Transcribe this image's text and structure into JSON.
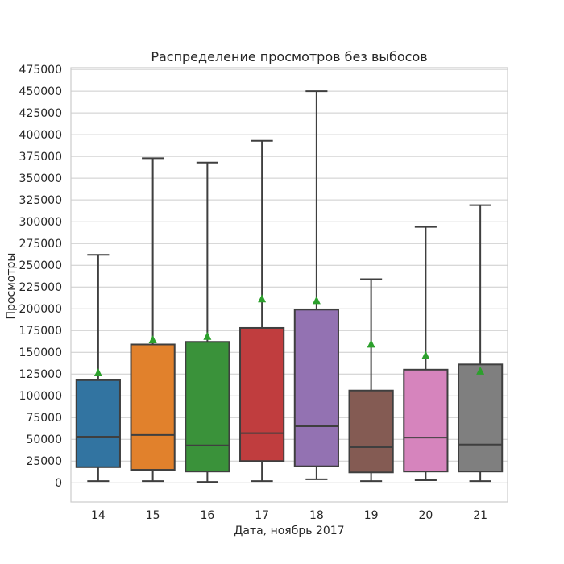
{
  "chart_data": {
    "type": "box",
    "title": "Распределение просмотров без выбосов",
    "xlabel": "Дата, ноябрь 2017",
    "ylabel": "Просмотры",
    "ylim": [
      -22000,
      477000
    ],
    "yticks": [
      0,
      25000,
      50000,
      75000,
      100000,
      125000,
      150000,
      175000,
      200000,
      225000,
      250000,
      275000,
      300000,
      325000,
      350000,
      375000,
      400000,
      425000,
      450000,
      475000
    ],
    "grid": true,
    "categories": [
      "14",
      "15",
      "16",
      "17",
      "18",
      "19",
      "20",
      "21"
    ],
    "series": [
      {
        "category": "14",
        "color": "#3274a1",
        "whisker_low": 2000,
        "q1": 18000,
        "median": 53000,
        "q3": 118000,
        "whisker_high": 262000,
        "mean": 127000
      },
      {
        "category": "15",
        "color": "#e1812c",
        "whisker_low": 2000,
        "q1": 15000,
        "median": 55000,
        "q3": 159000,
        "whisker_high": 373000,
        "mean": 165000
      },
      {
        "category": "16",
        "color": "#3a923a",
        "whisker_low": 1000,
        "q1": 13000,
        "median": 43000,
        "q3": 162000,
        "whisker_high": 368000,
        "mean": 169000
      },
      {
        "category": "17",
        "color": "#c03d3e",
        "whisker_low": 2000,
        "q1": 25000,
        "median": 57000,
        "q3": 178000,
        "whisker_high": 393000,
        "mean": 212000
      },
      {
        "category": "18",
        "color": "#9372b2",
        "whisker_low": 4000,
        "q1": 19000,
        "median": 65000,
        "q3": 199000,
        "whisker_high": 450000,
        "mean": 210000
      },
      {
        "category": "19",
        "color": "#845b53",
        "whisker_low": 2000,
        "q1": 12000,
        "median": 41000,
        "q3": 106000,
        "whisker_high": 234000,
        "mean": 160000
      },
      {
        "category": "20",
        "color": "#d684bd",
        "whisker_low": 3000,
        "q1": 13000,
        "median": 52000,
        "q3": 130000,
        "whisker_high": 294000,
        "mean": 147000
      },
      {
        "category": "21",
        "color": "#7f7f7f",
        "whisker_low": 2000,
        "q1": 13000,
        "median": 44000,
        "q3": 136000,
        "whisker_high": 319000,
        "mean": 129000
      }
    ]
  }
}
